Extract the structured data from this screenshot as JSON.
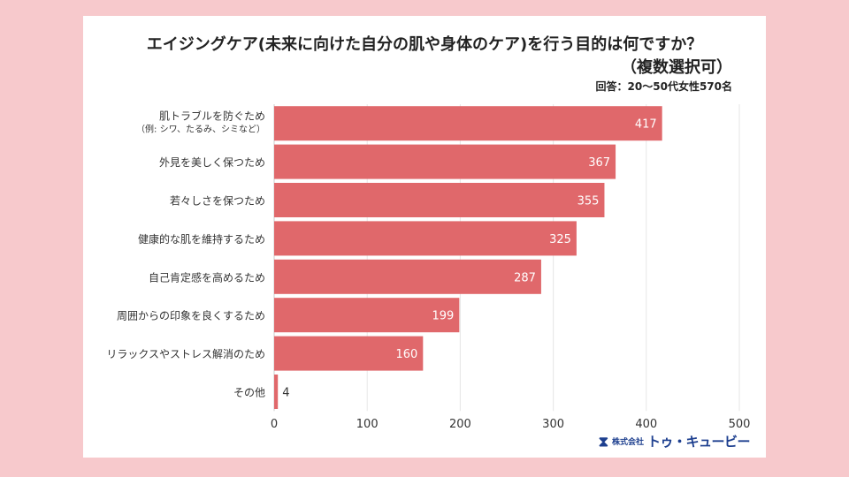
{
  "title_line1": "エイジングケア(未来に向けた自分の肌や身体のケア)を行う目的は何ですか？",
  "title_line2": "（複数選択可）",
  "respondent_note": "回答：20〜50代女性570名",
  "logo": {
    "icon": "hourglass-icon",
    "prefix": "株式会社",
    "name": "トゥ・キュービー"
  },
  "colors": {
    "page_background": "#f7c9cc",
    "bar": "#e0686b"
  },
  "chart_data": {
    "type": "bar",
    "orientation": "horizontal",
    "title": "エイジングケア(未来に向けた自分の肌や身体のケア)を行う目的は何ですか？（複数選択可）",
    "xlabel": "",
    "ylabel": "",
    "categories": [
      [
        "肌トラブルを防ぐため",
        "（例: シワ、たるみ、シミなど）"
      ],
      [
        "外見を美しく保つため"
      ],
      [
        "若々しさを保つため"
      ],
      [
        "健康的な肌を維持するため"
      ],
      [
        "自己肯定感を高めるため"
      ],
      [
        "周囲からの印象を良くするため"
      ],
      [
        "リラックスやストレス解消のため"
      ],
      [
        "その他"
      ]
    ],
    "values": [
      417,
      367,
      355,
      325,
      287,
      199,
      160,
      4
    ],
    "xlim": [
      0,
      500
    ],
    "xticks": [
      0,
      100,
      200,
      300,
      400,
      500
    ],
    "grid": true,
    "legend": "none"
  }
}
